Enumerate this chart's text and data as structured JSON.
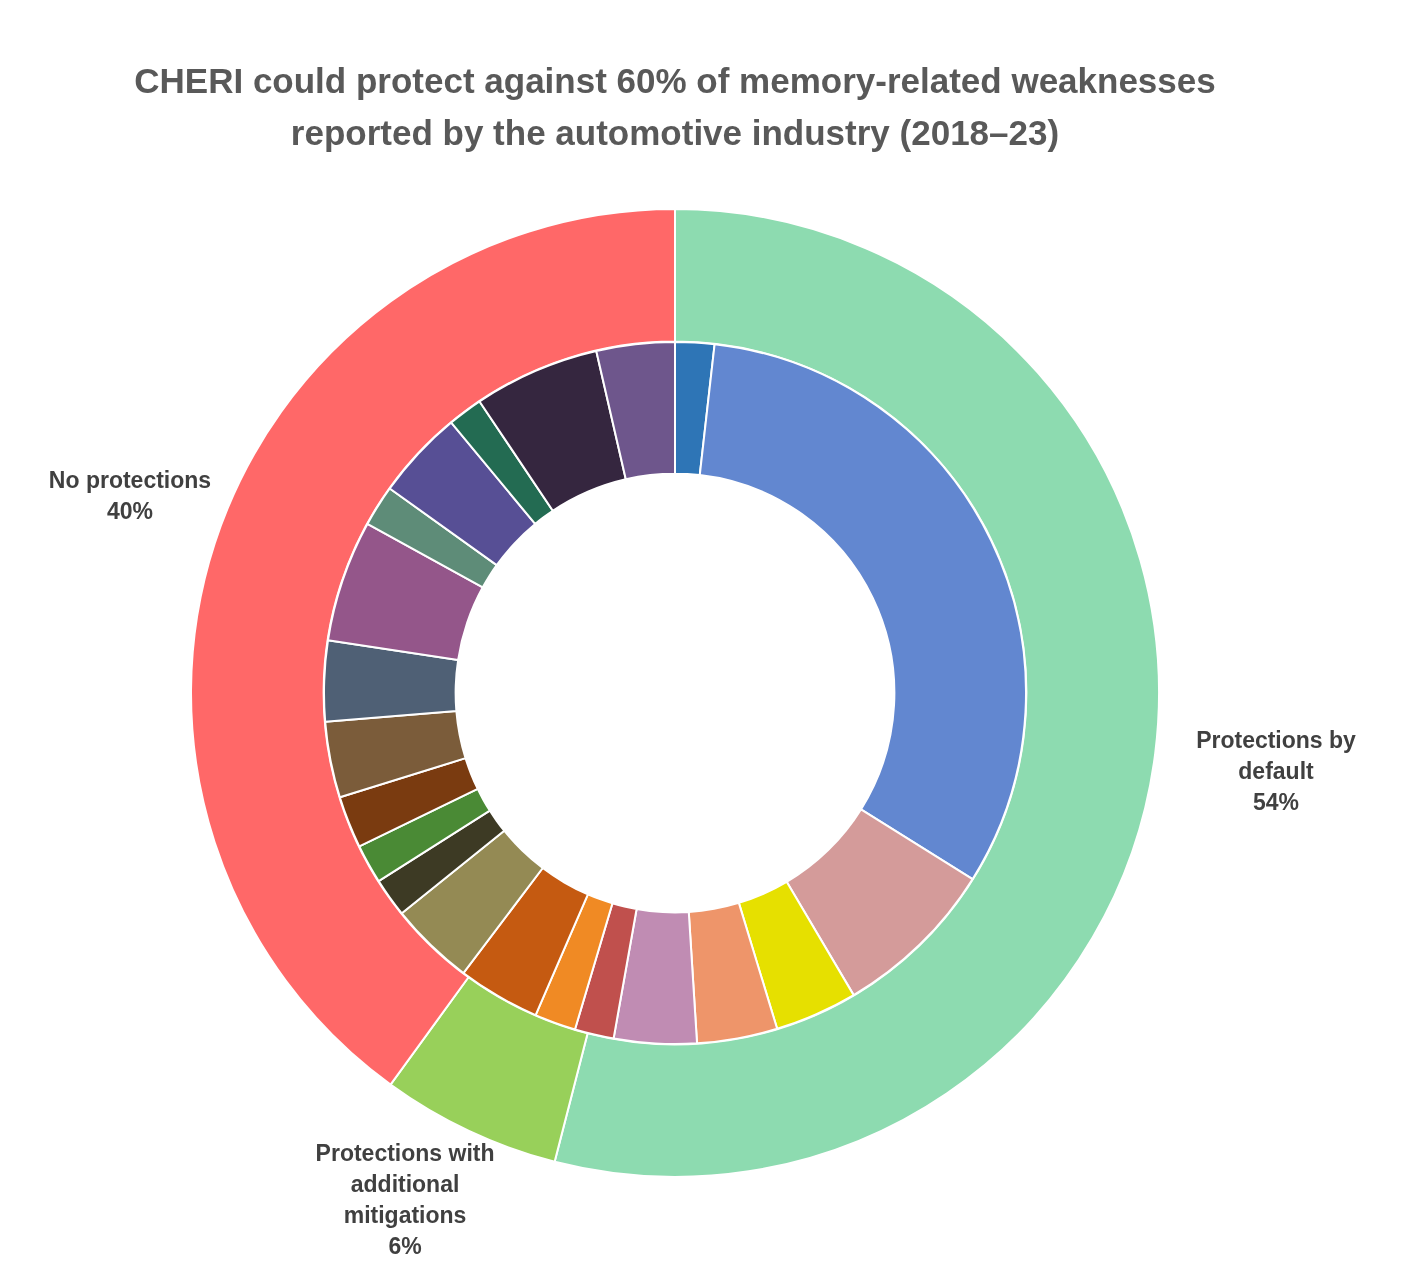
{
  "chart_data": [
    {
      "type": "donut",
      "title": "CHERI could protect against 60% of memory-related weaknesses reported by the automotive industry (2018–23)",
      "categories": [
        "Protections by default",
        "Protections with additional mitigations",
        "No protections"
      ],
      "values": [
        54,
        6,
        40
      ],
      "value_labels": [
        "54%",
        "6%",
        "40%"
      ],
      "colors": [
        "#8ddbb0",
        "#98d05a",
        "#ff6868"
      ]
    },
    {
      "type": "donut",
      "categories": [
        null,
        null,
        null,
        null,
        null,
        null,
        null,
        null,
        null,
        null,
        null,
        null,
        null,
        null,
        null,
        null,
        null,
        null,
        null,
        null,
        null
      ],
      "values": [
        1.8,
        32.1,
        7.6,
        3.8,
        3.7,
        3.8,
        1.8,
        1.9,
        3.8,
        3.9,
        1.8,
        1.8,
        2.4,
        3.5,
        3.7,
        5.6,
        1.9,
        4.1,
        1.6,
        5.8,
        3.6
      ],
      "colors": [
        "#2e75b6",
        "#6287d0",
        "#d49b9a",
        "#e6e000",
        "#ee956a",
        "#c08cb3",
        "#c0504d",
        "#f08a24",
        "#c55a11",
        "#948a54",
        "#3d3a24",
        "#4a8a35",
        "#7a3b10",
        "#7b5c3a",
        "#4f6075",
        "#94568a",
        "#5e8c78",
        "#574f95",
        "#236b52",
        "#35263f",
        "#6e568c"
      ]
    }
  ]
}
